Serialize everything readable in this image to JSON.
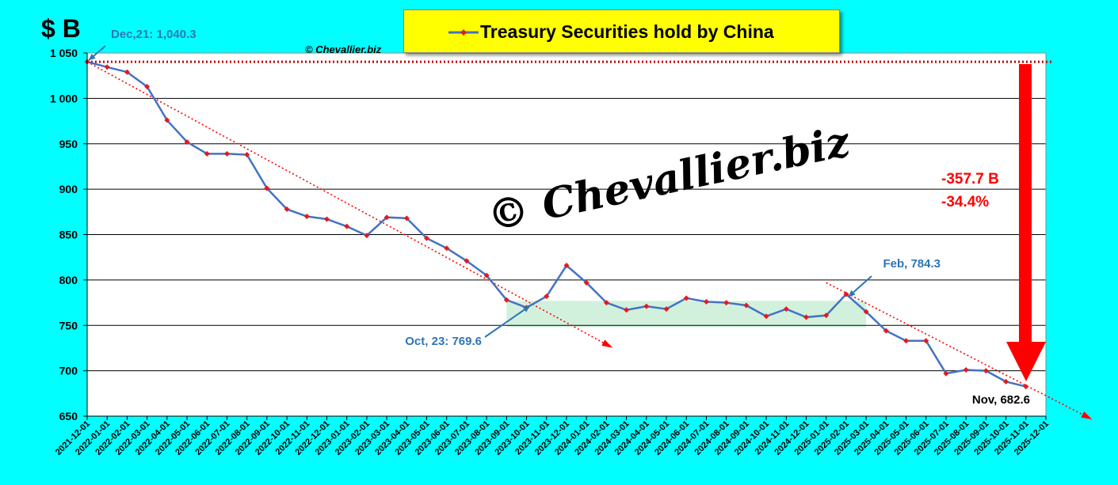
{
  "unit_label": "$ B",
  "copyright_small": "© Chevallier.biz",
  "watermark": "© Chevallier.biz",
  "chart_data": {
    "type": "line",
    "title": "Treasury Securities hold by China",
    "series": [
      {
        "name": "Treasury Securities hold by China",
        "color": "#4472C4",
        "marker_color": "#E41A1C",
        "values": [
          1040.3,
          1034.5,
          1029,
          1013,
          976,
          952,
          939,
          939,
          938,
          901,
          878,
          870,
          867,
          859,
          849,
          869,
          868,
          846,
          835,
          821,
          805,
          778,
          769.6,
          782,
          816,
          797,
          775,
          767,
          771,
          768,
          780,
          776,
          775,
          772,
          760,
          768,
          759,
          761,
          784.3,
          765,
          744,
          733,
          733,
          697,
          701,
          700,
          688,
          682.6
        ]
      }
    ],
    "x_tick_labels": [
      "2021-12-01",
      "2022-01-01",
      "2022-02-01",
      "2022-03-01",
      "2022-04-01",
      "2022-05-01",
      "2022-06-01",
      "2022-07-01",
      "2022-08-01",
      "2022-09-01",
      "2022-10-01",
      "2022-11-01",
      "2022-12-01",
      "2023-01-01",
      "2023-02-01",
      "2023-03-01",
      "2023-04-01",
      "2023-05-01",
      "2023-06-01",
      "2023-07-01",
      "2023-08-01",
      "2023-09-01",
      "2023-10-01",
      "2023-11-01",
      "2023-12-01",
      "2024-01-01",
      "2024-02-01",
      "2024-03-01",
      "2024-04-01",
      "2024-05-01",
      "2024-06-01",
      "2024-07-01",
      "2024-08-01",
      "2024-09-01",
      "2024-10-01",
      "2024-11-01",
      "2024-12-01",
      "2025-01-01",
      "2025-02-01",
      "2025-03-01",
      "2025-04-01",
      "2025-05-01",
      "2025-06-01",
      "2025-07-01",
      "2025-08-01",
      "2025-09-01",
      "2025-10-01",
      "2025-11-01",
      "2025-12-01"
    ],
    "y_ticks": [
      650,
      700,
      750,
      800,
      850,
      900,
      950,
      1000,
      1050
    ],
    "y_tick_labels": [
      "650",
      "700",
      "750",
      "800",
      "850",
      "900",
      "950",
      "1 000",
      "1 050"
    ],
    "ylim": [
      650,
      1050
    ],
    "grid": true,
    "reference_line_value": 1040.3,
    "trend_lines": [
      {
        "from": [
          0,
          1040.3
        ],
        "to": [
          26,
          729
        ]
      },
      {
        "from": [
          37,
          797
        ],
        "to": [
          50,
          650
        ]
      }
    ],
    "range_band": {
      "from_index": 21,
      "to_index": 39,
      "y_low": 748,
      "y_high": 777
    },
    "annotations": [
      {
        "text": "Dec,21: 1,040.3",
        "index": 0,
        "value": 1040.3,
        "color": "#2E75B6"
      },
      {
        "text": "Oct, 23: 769.6",
        "index": 22,
        "value": 769.6,
        "color": "#2E75B6"
      },
      {
        "text": "Feb, 784.3",
        "index": 38,
        "value": 784.3,
        "color": "#2E75B6"
      },
      {
        "text": "Nov, 682.6",
        "index": 47,
        "value": 682.6,
        "color": "#000000"
      }
    ],
    "change_labels": [
      "-357.7 B",
      "-34.4%"
    ],
    "change_color": "#FF0000"
  }
}
